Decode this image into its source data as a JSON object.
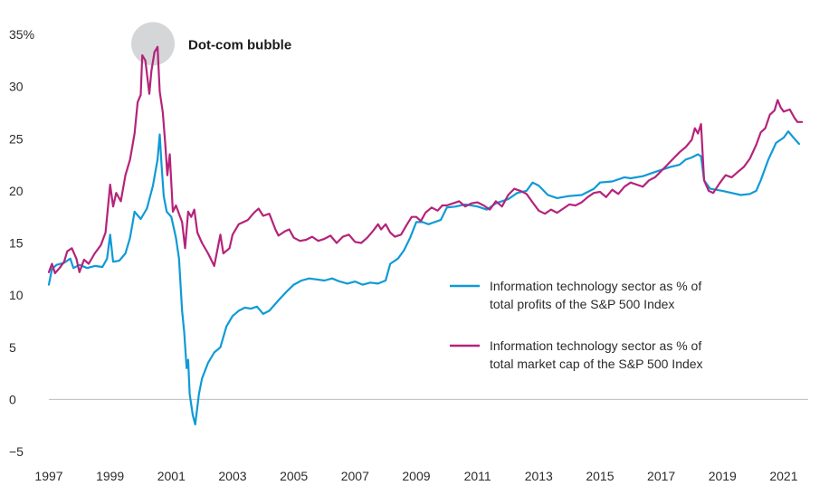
{
  "chart_data": {
    "type": "line",
    "title": "",
    "xlabel": "",
    "ylabel": "",
    "ylim": [
      -5,
      35
    ],
    "xlim": [
      1997,
      2021.8
    ],
    "y_ticks": [
      -5,
      0,
      5,
      10,
      15,
      20,
      25,
      30,
      35
    ],
    "y_tick_labels": [
      "−5",
      "0",
      "5",
      "10",
      "15",
      "20",
      "25",
      "30",
      "35%"
    ],
    "x_tick_labels": [
      "1997",
      "1999",
      "2001",
      "2003",
      "2005",
      "2007",
      "2009",
      "2011",
      "2013",
      "2015",
      "2017",
      "2019",
      "2021"
    ],
    "grid": false,
    "zero_line": true,
    "legend_position": "center-right",
    "annotation": {
      "text": "Dot-com bubble",
      "x": 2000.4,
      "y": 34.1
    },
    "series": [
      {
        "name": "Information technology sector as % of total profits of the S&P 500 Index",
        "legend_lines": [
          "Information technology sector as % of",
          "total profits of the S&P 500 Index"
        ],
        "color": "#0f9ad6",
        "points": [
          [
            1997.0,
            11.0
          ],
          [
            1997.1,
            12.5
          ],
          [
            1997.25,
            12.9
          ],
          [
            1997.5,
            13.1
          ],
          [
            1997.7,
            13.5
          ],
          [
            1997.8,
            12.6
          ],
          [
            1998.0,
            12.9
          ],
          [
            1998.25,
            12.6
          ],
          [
            1998.5,
            12.8
          ],
          [
            1998.75,
            12.7
          ],
          [
            1998.9,
            13.5
          ],
          [
            1999.0,
            15.8
          ],
          [
            1999.1,
            13.2
          ],
          [
            1999.3,
            13.3
          ],
          [
            1999.5,
            14.0
          ],
          [
            1999.65,
            15.5
          ],
          [
            1999.8,
            18.0
          ],
          [
            2000.0,
            17.3
          ],
          [
            2000.2,
            18.3
          ],
          [
            2000.4,
            20.5
          ],
          [
            2000.55,
            23.0
          ],
          [
            2000.62,
            25.4
          ],
          [
            2000.68,
            22.5
          ],
          [
            2000.75,
            19.5
          ],
          [
            2000.85,
            18.0
          ],
          [
            2001.0,
            17.5
          ],
          [
            2001.15,
            15.5
          ],
          [
            2001.25,
            13.5
          ],
          [
            2001.35,
            8.5
          ],
          [
            2001.42,
            6.5
          ],
          [
            2001.5,
            3.0
          ],
          [
            2001.55,
            3.8
          ],
          [
            2001.6,
            0.5
          ],
          [
            2001.7,
            -1.5
          ],
          [
            2001.78,
            -2.4
          ],
          [
            2001.9,
            0.5
          ],
          [
            2002.0,
            2.0
          ],
          [
            2002.2,
            3.5
          ],
          [
            2002.4,
            4.5
          ],
          [
            2002.6,
            5.0
          ],
          [
            2002.8,
            7.0
          ],
          [
            2003.0,
            8.0
          ],
          [
            2003.2,
            8.5
          ],
          [
            2003.4,
            8.8
          ],
          [
            2003.6,
            8.7
          ],
          [
            2003.8,
            8.9
          ],
          [
            2004.0,
            8.2
          ],
          [
            2004.2,
            8.5
          ],
          [
            2004.5,
            9.5
          ],
          [
            2004.75,
            10.3
          ],
          [
            2005.0,
            11.0
          ],
          [
            2005.25,
            11.4
          ],
          [
            2005.5,
            11.6
          ],
          [
            2005.75,
            11.5
          ],
          [
            2006.0,
            11.4
          ],
          [
            2006.25,
            11.6
          ],
          [
            2006.5,
            11.3
          ],
          [
            2006.75,
            11.1
          ],
          [
            2007.0,
            11.3
          ],
          [
            2007.25,
            11.0
          ],
          [
            2007.5,
            11.2
          ],
          [
            2007.75,
            11.1
          ],
          [
            2008.0,
            11.4
          ],
          [
            2008.15,
            13.0
          ],
          [
            2008.4,
            13.5
          ],
          [
            2008.6,
            14.3
          ],
          [
            2008.8,
            15.5
          ],
          [
            2009.0,
            17.0
          ],
          [
            2009.2,
            17.0
          ],
          [
            2009.4,
            16.8
          ],
          [
            2009.6,
            17.0
          ],
          [
            2009.8,
            17.2
          ],
          [
            2010.0,
            18.4
          ],
          [
            2010.3,
            18.5
          ],
          [
            2010.6,
            18.7
          ],
          [
            2011.0,
            18.5
          ],
          [
            2011.3,
            18.2
          ],
          [
            2011.6,
            18.8
          ],
          [
            2012.0,
            19.2
          ],
          [
            2012.3,
            19.8
          ],
          [
            2012.6,
            20.0
          ],
          [
            2012.8,
            20.8
          ],
          [
            2013.0,
            20.5
          ],
          [
            2013.3,
            19.6
          ],
          [
            2013.6,
            19.3
          ],
          [
            2014.0,
            19.5
          ],
          [
            2014.4,
            19.6
          ],
          [
            2014.8,
            20.2
          ],
          [
            2015.0,
            20.8
          ],
          [
            2015.4,
            20.9
          ],
          [
            2015.8,
            21.3
          ],
          [
            2016.0,
            21.2
          ],
          [
            2016.4,
            21.4
          ],
          [
            2016.8,
            21.8
          ],
          [
            2017.0,
            22.0
          ],
          [
            2017.3,
            22.3
          ],
          [
            2017.6,
            22.5
          ],
          [
            2017.8,
            23.0
          ],
          [
            2018.0,
            23.2
          ],
          [
            2018.2,
            23.5
          ],
          [
            2018.3,
            23.3
          ],
          [
            2018.4,
            21.0
          ],
          [
            2018.6,
            20.2
          ],
          [
            2019.0,
            20.0
          ],
          [
            2019.3,
            19.8
          ],
          [
            2019.6,
            19.6
          ],
          [
            2019.9,
            19.7
          ],
          [
            2020.1,
            20.0
          ],
          [
            2020.25,
            21.0
          ],
          [
            2020.5,
            23.0
          ],
          [
            2020.75,
            24.6
          ],
          [
            2021.0,
            25.1
          ],
          [
            2021.15,
            25.7
          ],
          [
            2021.35,
            25.0
          ],
          [
            2021.5,
            24.5
          ]
        ]
      },
      {
        "name": "Information technology sector as % of total market cap of the S&P 500 Index",
        "legend_lines": [
          "Information technology sector as % of",
          "total market cap of the S&P 500 Index"
        ],
        "color": "#b5237a",
        "points": [
          [
            1997.0,
            12.2
          ],
          [
            1997.1,
            13.0
          ],
          [
            1997.2,
            12.1
          ],
          [
            1997.35,
            12.6
          ],
          [
            1997.5,
            13.2
          ],
          [
            1997.6,
            14.2
          ],
          [
            1997.75,
            14.5
          ],
          [
            1997.9,
            13.5
          ],
          [
            1998.0,
            12.2
          ],
          [
            1998.15,
            13.4
          ],
          [
            1998.3,
            13.0
          ],
          [
            1998.5,
            14.0
          ],
          [
            1998.7,
            14.8
          ],
          [
            1998.85,
            16.0
          ],
          [
            1999.0,
            20.6
          ],
          [
            1999.1,
            18.5
          ],
          [
            1999.2,
            19.8
          ],
          [
            1999.35,
            19.0
          ],
          [
            1999.5,
            21.5
          ],
          [
            1999.65,
            23.0
          ],
          [
            1999.8,
            25.5
          ],
          [
            1999.9,
            28.5
          ],
          [
            2000.0,
            29.2
          ],
          [
            2000.05,
            33.0
          ],
          [
            2000.15,
            32.5
          ],
          [
            2000.28,
            29.3
          ],
          [
            2000.35,
            31.5
          ],
          [
            2000.45,
            33.3
          ],
          [
            2000.55,
            33.8
          ],
          [
            2000.62,
            29.5
          ],
          [
            2000.72,
            27.5
          ],
          [
            2000.8,
            24.5
          ],
          [
            2000.87,
            21.5
          ],
          [
            2000.95,
            23.5
          ],
          [
            2001.05,
            18.0
          ],
          [
            2001.15,
            18.6
          ],
          [
            2001.25,
            17.8
          ],
          [
            2001.35,
            17.0
          ],
          [
            2001.45,
            14.5
          ],
          [
            2001.55,
            18.0
          ],
          [
            2001.65,
            17.5
          ],
          [
            2001.75,
            18.2
          ],
          [
            2001.85,
            16.0
          ],
          [
            2002.0,
            15.0
          ],
          [
            2002.2,
            14.0
          ],
          [
            2002.4,
            12.8
          ],
          [
            2002.6,
            15.8
          ],
          [
            2002.7,
            14.0
          ],
          [
            2002.9,
            14.5
          ],
          [
            2003.0,
            15.8
          ],
          [
            2003.2,
            16.8
          ],
          [
            2003.5,
            17.2
          ],
          [
            2003.7,
            17.9
          ],
          [
            2003.85,
            18.3
          ],
          [
            2004.0,
            17.6
          ],
          [
            2004.2,
            17.8
          ],
          [
            2004.4,
            16.3
          ],
          [
            2004.5,
            15.7
          ],
          [
            2004.7,
            16.1
          ],
          [
            2004.85,
            16.3
          ],
          [
            2005.0,
            15.5
          ],
          [
            2005.2,
            15.2
          ],
          [
            2005.4,
            15.3
          ],
          [
            2005.6,
            15.6
          ],
          [
            2005.8,
            15.2
          ],
          [
            2006.0,
            15.4
          ],
          [
            2006.2,
            15.7
          ],
          [
            2006.4,
            15.0
          ],
          [
            2006.6,
            15.6
          ],
          [
            2006.8,
            15.8
          ],
          [
            2007.0,
            15.1
          ],
          [
            2007.2,
            15.0
          ],
          [
            2007.4,
            15.5
          ],
          [
            2007.6,
            16.2
          ],
          [
            2007.75,
            16.8
          ],
          [
            2007.85,
            16.3
          ],
          [
            2008.0,
            16.8
          ],
          [
            2008.15,
            16.0
          ],
          [
            2008.3,
            15.6
          ],
          [
            2008.5,
            15.8
          ],
          [
            2008.7,
            16.8
          ],
          [
            2008.85,
            17.5
          ],
          [
            2009.0,
            17.5
          ],
          [
            2009.15,
            17.1
          ],
          [
            2009.3,
            17.9
          ],
          [
            2009.5,
            18.4
          ],
          [
            2009.7,
            18.1
          ],
          [
            2009.85,
            18.6
          ],
          [
            2010.0,
            18.6
          ],
          [
            2010.2,
            18.8
          ],
          [
            2010.4,
            19.0
          ],
          [
            2010.6,
            18.5
          ],
          [
            2010.8,
            18.8
          ],
          [
            2011.0,
            18.9
          ],
          [
            2011.2,
            18.6
          ],
          [
            2011.4,
            18.2
          ],
          [
            2011.6,
            19.0
          ],
          [
            2011.8,
            18.5
          ],
          [
            2012.0,
            19.6
          ],
          [
            2012.2,
            20.2
          ],
          [
            2012.4,
            20.0
          ],
          [
            2012.6,
            19.7
          ],
          [
            2012.8,
            18.9
          ],
          [
            2013.0,
            18.1
          ],
          [
            2013.2,
            17.8
          ],
          [
            2013.4,
            18.2
          ],
          [
            2013.6,
            17.9
          ],
          [
            2013.8,
            18.3
          ],
          [
            2014.0,
            18.7
          ],
          [
            2014.2,
            18.6
          ],
          [
            2014.4,
            18.9
          ],
          [
            2014.6,
            19.4
          ],
          [
            2014.8,
            19.8
          ],
          [
            2015.0,
            19.9
          ],
          [
            2015.2,
            19.4
          ],
          [
            2015.4,
            20.1
          ],
          [
            2015.6,
            19.7
          ],
          [
            2015.8,
            20.4
          ],
          [
            2016.0,
            20.8
          ],
          [
            2016.2,
            20.6
          ],
          [
            2016.4,
            20.4
          ],
          [
            2016.6,
            21.0
          ],
          [
            2016.8,
            21.3
          ],
          [
            2017.0,
            21.9
          ],
          [
            2017.2,
            22.5
          ],
          [
            2017.4,
            23.1
          ],
          [
            2017.6,
            23.7
          ],
          [
            2017.8,
            24.2
          ],
          [
            2018.0,
            24.9
          ],
          [
            2018.1,
            26.0
          ],
          [
            2018.2,
            25.5
          ],
          [
            2018.3,
            26.4
          ],
          [
            2018.4,
            21.0
          ],
          [
            2018.55,
            20.0
          ],
          [
            2018.7,
            19.8
          ],
          [
            2018.9,
            20.7
          ],
          [
            2019.1,
            21.5
          ],
          [
            2019.3,
            21.3
          ],
          [
            2019.5,
            21.8
          ],
          [
            2019.7,
            22.3
          ],
          [
            2019.9,
            23.1
          ],
          [
            2020.1,
            24.4
          ],
          [
            2020.25,
            25.6
          ],
          [
            2020.4,
            26.0
          ],
          [
            2020.55,
            27.3
          ],
          [
            2020.7,
            27.7
          ],
          [
            2020.8,
            28.7
          ],
          [
            2020.9,
            28.0
          ],
          [
            2021.0,
            27.6
          ],
          [
            2021.2,
            27.8
          ],
          [
            2021.35,
            27.0
          ],
          [
            2021.45,
            26.6
          ],
          [
            2021.6,
            26.6
          ]
        ]
      }
    ]
  }
}
